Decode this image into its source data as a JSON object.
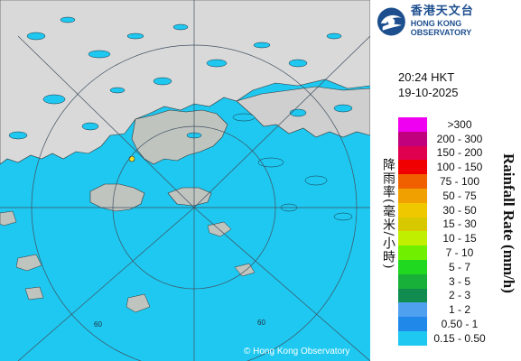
{
  "header": {
    "org_name_cn": "香港天文台",
    "org_name_en": "HONG KONG OBSERVATORY"
  },
  "timestamp": {
    "time": "20:24 HKT",
    "date": "19-10-2025"
  },
  "map": {
    "copyright": "© Hong Kong Observatory",
    "range_ring_label_left": "60",
    "range_ring_label_right": "60",
    "rain_color": "#1ec8f0",
    "sea_color": "#1ec8f0",
    "land_color": "#d8d8d8"
  },
  "legend": {
    "title_cn": "降雨率(毫米/小時)",
    "title_en": "Rainfall Rate (mm/h)",
    "items": [
      {
        "label": ">300",
        "color": "#f000f0"
      },
      {
        "label": "200 - 300",
        "color": "#c0007c"
      },
      {
        "label": "150 - 200",
        "color": "#e00050"
      },
      {
        "label": "100 - 150",
        "color": "#f00000"
      },
      {
        "label": "75 - 100",
        "color": "#f06000"
      },
      {
        "label": "50 - 75",
        "color": "#f0a000"
      },
      {
        "label": "30 - 50",
        "color": "#f0c800"
      },
      {
        "label": "15 - 30",
        "color": "#d8c800"
      },
      {
        "label": "10 - 15",
        "color": "#c0f000"
      },
      {
        "label": "7 - 10",
        "color": "#70f000"
      },
      {
        "label": "5 - 7",
        "color": "#20d820"
      },
      {
        "label": "3 - 5",
        "color": "#18b038"
      },
      {
        "label": "2 - 3",
        "color": "#108c50"
      },
      {
        "label": "1 - 2",
        "color": "#50a0f0"
      },
      {
        "label": "0.50 - 1",
        "color": "#2088e8"
      },
      {
        "label": "0.15 - 0.50",
        "color": "#1ec8f0"
      }
    ]
  }
}
